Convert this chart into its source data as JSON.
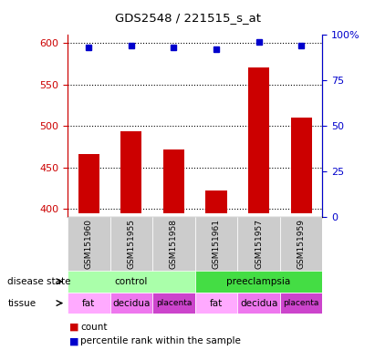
{
  "title": "GDS2548 / 221515_s_at",
  "samples": [
    "GSM151960",
    "GSM151955",
    "GSM151958",
    "GSM151961",
    "GSM151957",
    "GSM151959"
  ],
  "count_values": [
    466,
    494,
    472,
    422,
    571,
    510
  ],
  "percentile_values": [
    93,
    94,
    93,
    92,
    96,
    94
  ],
  "ylim_left": [
    390,
    610
  ],
  "ylim_right": [
    0,
    100
  ],
  "yticks_left": [
    400,
    450,
    500,
    550,
    600
  ],
  "yticks_right": [
    0,
    25,
    50,
    75,
    100
  ],
  "bar_color": "#cc0000",
  "dot_color": "#0000cc",
  "bar_bottom": 395,
  "disease_state": [
    {
      "label": "control",
      "span": [
        0,
        3
      ],
      "color": "#aaffaa"
    },
    {
      "label": "preeclampsia",
      "span": [
        3,
        6
      ],
      "color": "#44dd44"
    }
  ],
  "tissue": [
    {
      "label": "fat",
      "span": [
        0,
        1
      ],
      "color": "#ffaaff"
    },
    {
      "label": "decidua",
      "span": [
        1,
        2
      ],
      "color": "#ee77ee"
    },
    {
      "label": "placenta",
      "span": [
        2,
        3
      ],
      "color": "#cc44cc"
    },
    {
      "label": "fat",
      "span": [
        3,
        4
      ],
      "color": "#ffaaff"
    },
    {
      "label": "decidua",
      "span": [
        4,
        5
      ],
      "color": "#ee77ee"
    },
    {
      "label": "placenta",
      "span": [
        5,
        6
      ],
      "color": "#cc44cc"
    }
  ],
  "left_axis_color": "#cc0000",
  "right_axis_color": "#0000cc",
  "background_color": "#ffffff",
  "grid_color": "#000000",
  "sample_bg_color": "#cccccc"
}
